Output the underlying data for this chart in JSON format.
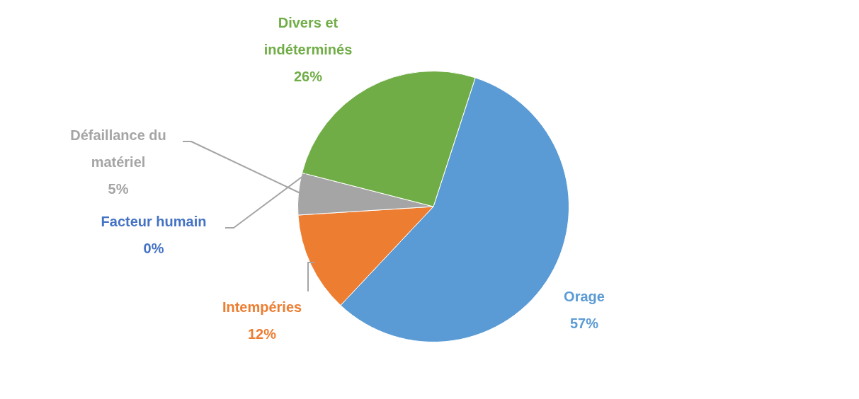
{
  "chart_data": {
    "type": "pie",
    "categories": [
      "Orage",
      "Intempéries",
      "Défaillance du matériel",
      "Facteur humain",
      "Divers et indéterminés"
    ],
    "values": [
      57,
      12,
      5,
      0,
      26
    ],
    "colors": [
      "#5b9bd5",
      "#ed7d31",
      "#a5a5a5",
      "#4472c4",
      "#70ad47"
    ],
    "value_labels": [
      "57%",
      "12%",
      "5%",
      "0%",
      "26%"
    ]
  }
}
